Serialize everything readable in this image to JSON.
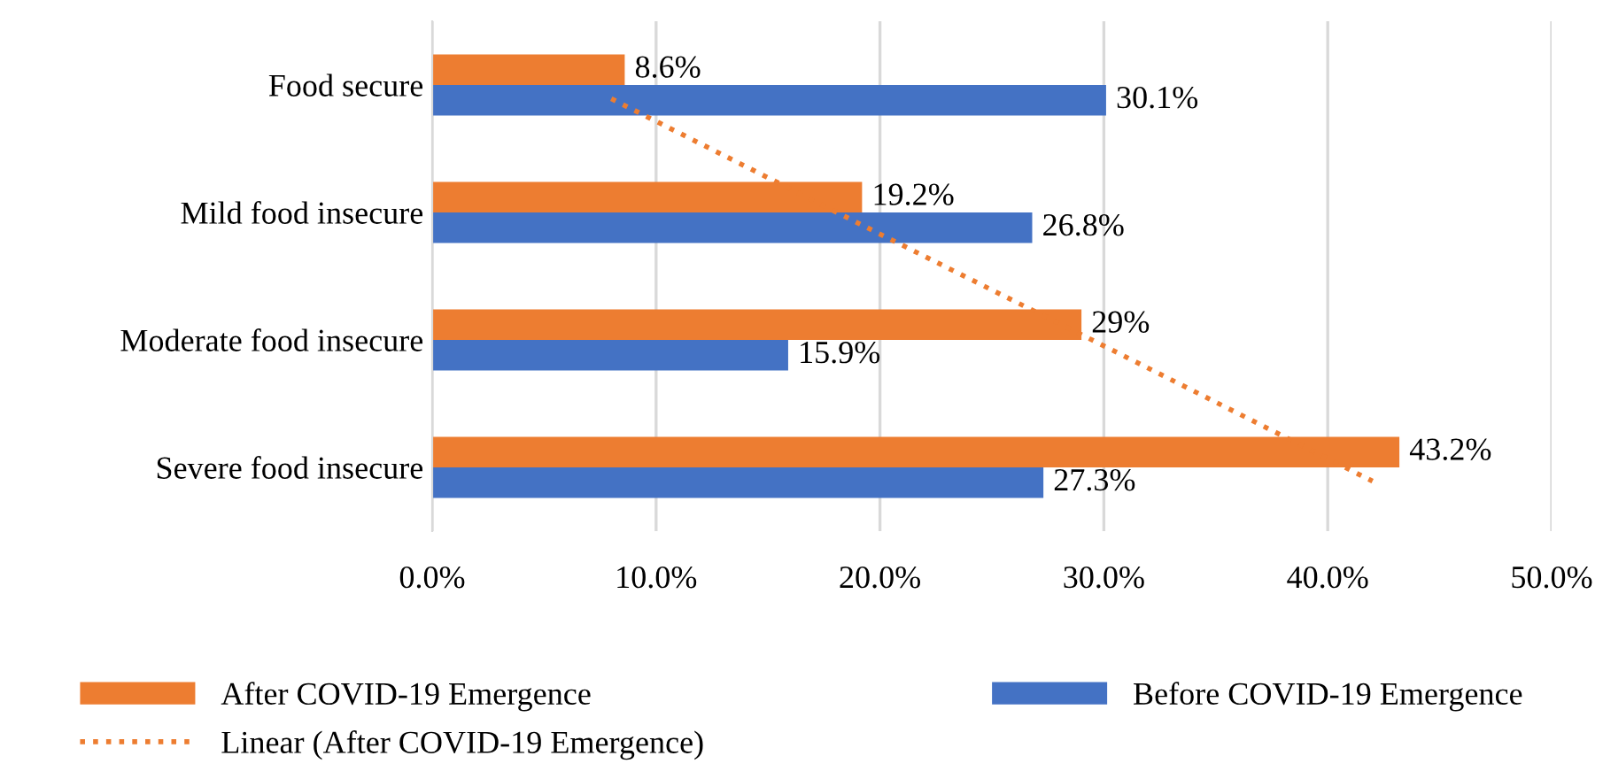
{
  "chart_data": {
    "type": "bar",
    "orientation": "horizontal",
    "categories": [
      "Food secure",
      "Mild food insecure",
      "Moderate food insecure",
      "Severe food insecure"
    ],
    "series": [
      {
        "name": "After COVID-19 Emergence",
        "color": "#ed7d31",
        "values": [
          8.6,
          19.2,
          29,
          43.2
        ],
        "value_labels": [
          "8.6%",
          "19.2%",
          "29%",
          "43.2%"
        ]
      },
      {
        "name": "Before COVID-19 Emergence",
        "color": "#4472c4",
        "values": [
          30.1,
          26.8,
          15.9,
          27.3
        ],
        "value_labels": [
          "30.1%",
          "26.8%",
          "15.9%",
          "27.3%"
        ]
      },
      {
        "name": "Linear (After COVID-19 Emergence)",
        "type": "line",
        "line_style": "dotted",
        "color": "#ed7d31",
        "values": [
          8.0,
          19.3,
          30.7,
          42.0
        ]
      }
    ],
    "xlim": [
      0,
      50
    ],
    "xticks": [
      {
        "value": 0,
        "label": "0.0%"
      },
      {
        "value": 10,
        "label": "10.0%"
      },
      {
        "value": 20,
        "label": "20.0%"
      },
      {
        "value": 30,
        "label": "30.0%"
      },
      {
        "value": 40,
        "label": "40.0%"
      },
      {
        "value": 50,
        "label": "50.0%"
      }
    ],
    "grid": "x",
    "legend": "bottom"
  }
}
